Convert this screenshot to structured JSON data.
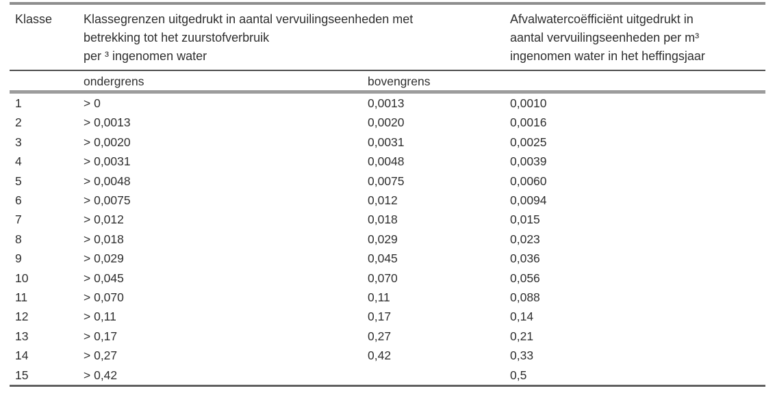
{
  "table": {
    "columns": {
      "klasse": "Klasse",
      "klassegrenzen_lines": [
        "Klassegrenzen uitgedrukt in aantal vervuilingseenheden met",
        "betrekking tot het zuurstofverbruik",
        "per ³ ingenomen water"
      ],
      "afvalwater_lines": [
        "Afvalwatercоëfficiënt uitgedrukt in",
        "aantal vervuilingseenheden per m³",
        "ingenomen water in het heffingsjaar"
      ],
      "ondergrens": "ondergrens",
      "bovengrens": "bovengrens"
    },
    "rows": [
      {
        "klasse": "1",
        "ondergrens": "> 0",
        "bovengrens": "0,0013",
        "coefficient": "0,0010"
      },
      {
        "klasse": "2",
        "ondergrens": "> 0,0013",
        "bovengrens": "0,0020",
        "coefficient": "0,0016"
      },
      {
        "klasse": "3",
        "ondergrens": "> 0,0020",
        "bovengrens": "0,0031",
        "coefficient": "0,0025"
      },
      {
        "klasse": "4",
        "ondergrens": "> 0,0031",
        "bovengrens": "0,0048",
        "coefficient": "0,0039"
      },
      {
        "klasse": "5",
        "ondergrens": "> 0,0048",
        "bovengrens": "0,0075",
        "coefficient": "0,0060"
      },
      {
        "klasse": "6",
        "ondergrens": "> 0,0075",
        "bovengrens": "0,012",
        "coefficient": "0,0094"
      },
      {
        "klasse": "7",
        "ondergrens": "> 0,012",
        "bovengrens": "0,018",
        "coefficient": "0,015"
      },
      {
        "klasse": "8",
        "ondergrens": "> 0,018",
        "bovengrens": "0,029",
        "coefficient": "0,023"
      },
      {
        "klasse": "9",
        "ondergrens": "> 0,029",
        "bovengrens": "0,045",
        "coefficient": "0,036"
      },
      {
        "klasse": "10",
        "ondergrens": "> 0,045",
        "bovengrens": "0,070",
        "coefficient": "0,056"
      },
      {
        "klasse": "11",
        "ondergrens": "> 0,070",
        "bovengrens": "0,11",
        "coefficient": "0,088"
      },
      {
        "klasse": "12",
        "ondergrens": "> 0,11",
        "bovengrens": "0,17",
        "coefficient": "0,14"
      },
      {
        "klasse": "13",
        "ondergrens": "> 0,17",
        "bovengrens": "0,27",
        "coefficient": "0,21"
      },
      {
        "klasse": "14",
        "ondergrens": "> 0,27",
        "bovengrens": "0,42",
        "coefficient": "0,33"
      },
      {
        "klasse": "15",
        "ondergrens": "> 0,42",
        "bovengrens": "",
        "coefficient": "0,5"
      }
    ]
  },
  "colors": {
    "top_rule": "#8e8e8e",
    "header_rule": "#4c4c4c",
    "subheader_rule": "#9c9c9c",
    "bottom_rule": "#5f5f5f",
    "text": "#2e2e2e",
    "background": "#ffffff"
  }
}
